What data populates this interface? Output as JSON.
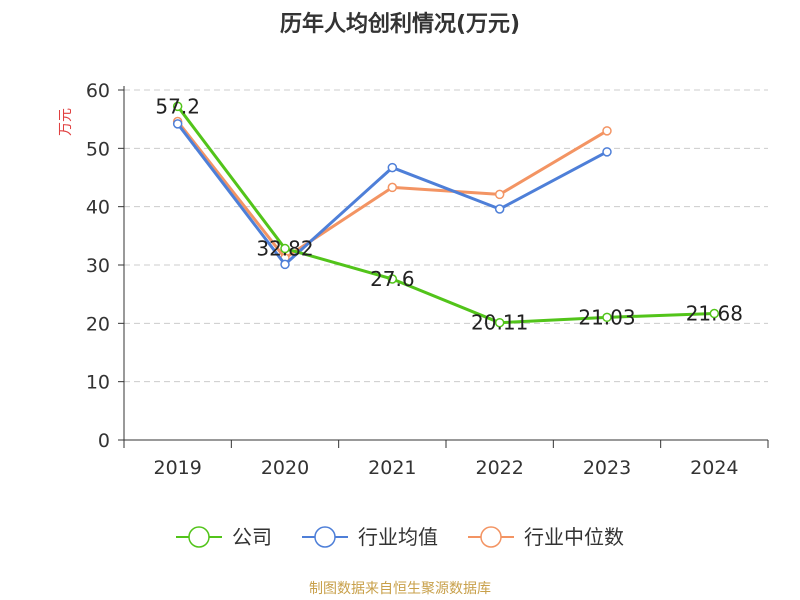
{
  "title": "历年人均创利情况(万元)",
  "source": "制图数据来自恒生聚源数据库",
  "chart_data": {
    "type": "line",
    "title": "历年人均创利情况(万元)",
    "ylabel": "万元",
    "xlabel": "",
    "categories": [
      "2019",
      "2020",
      "2021",
      "2022",
      "2023",
      "2024"
    ],
    "ylim": [
      0,
      60
    ],
    "yticks": [
      0,
      10,
      20,
      30,
      40,
      50,
      60
    ],
    "grid": true,
    "legend": "bottom",
    "series": [
      {
        "name": "公司",
        "color": "#52c41a",
        "values": [
          57.2,
          32.82,
          27.6,
          20.11,
          21.03,
          21.68
        ],
        "labels": [
          "57.2",
          "32.82",
          "27.6",
          "20.11",
          "21.03",
          "21.68"
        ]
      },
      {
        "name": "行业均值",
        "color": "#4e7fd8",
        "values": [
          54.2,
          30.1,
          46.7,
          39.6,
          49.4,
          null
        ]
      },
      {
        "name": "行业中位数",
        "color": "#f39463",
        "values": [
          54.6,
          31.2,
          43.3,
          42.1,
          53.0,
          null
        ]
      }
    ]
  }
}
